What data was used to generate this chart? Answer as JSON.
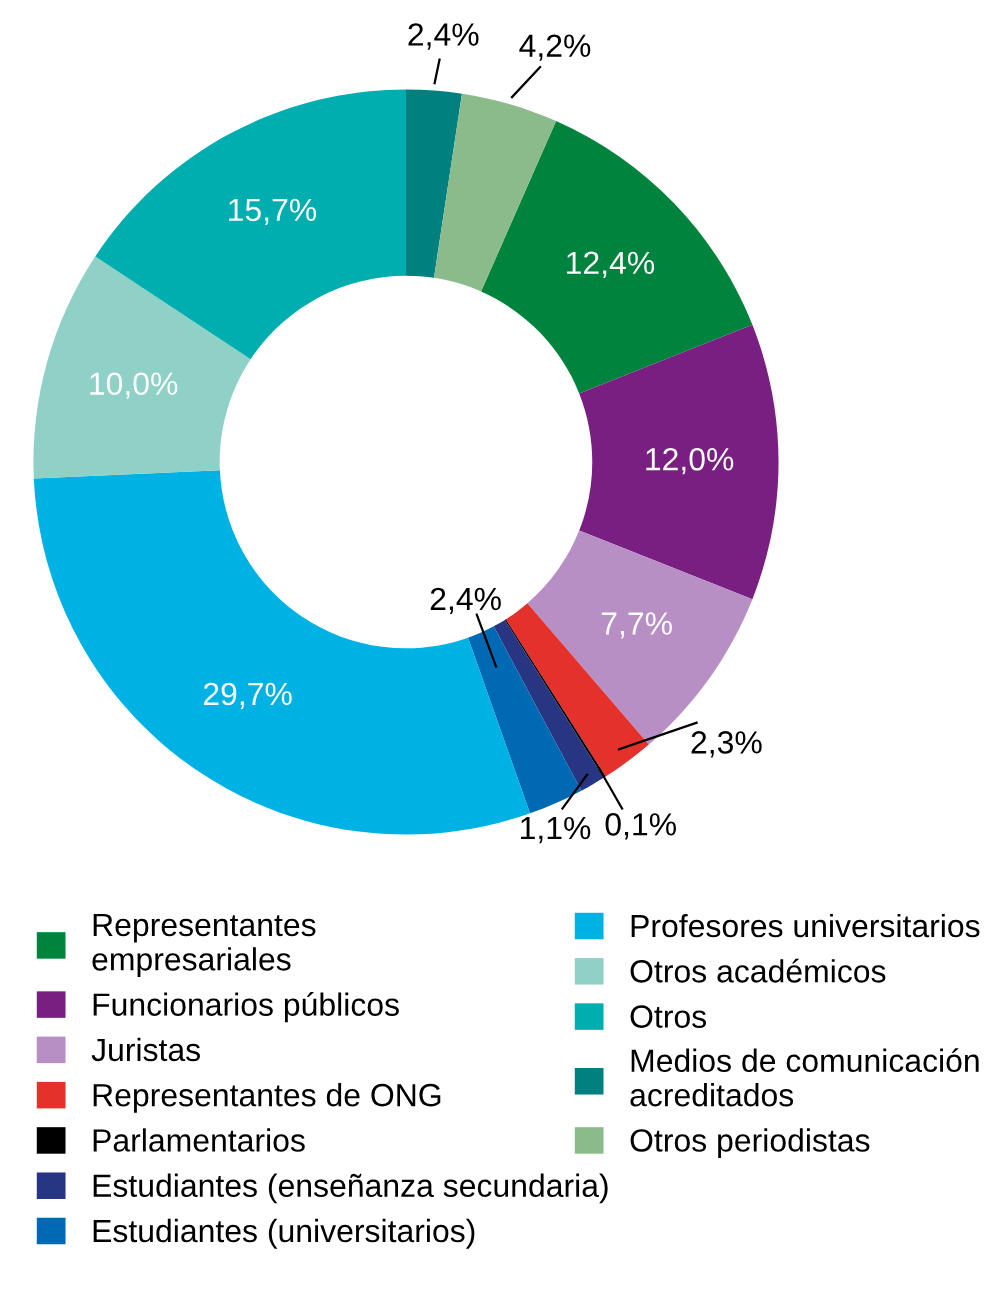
{
  "chart_data": {
    "type": "donut",
    "categories": [
      "Representantes\nempresariales",
      "Funcionarios públicos",
      "Juristas",
      "Representantes de ONG",
      "Parlamentarios",
      "Estudiantes (enseñanza secundaria)",
      "Estudiantes (universitarios)",
      "Profesores universitarios",
      "Otros académicos",
      "Otros",
      "Medios de comunicación\nacreditados",
      "Otros periodistas"
    ],
    "values": [
      12.4,
      12.0,
      7.7,
      2.3,
      0.1,
      1.1,
      2.4,
      29.7,
      10.0,
      15.7,
      2.4,
      4.2
    ],
    "value_labels": [
      "12,4%",
      "12,0%",
      "7,7%",
      "2,3%",
      "0,1%",
      "1,1%",
      "2,4%",
      "29,7%",
      "10,0%",
      "15,7%",
      "2,4%",
      "4,2%"
    ],
    "colors": [
      "#00843d",
      "#7a1f82",
      "#b78fc4",
      "#e4312b",
      "#000000",
      "#283583",
      "#0069b4",
      "#00b2e3",
      "#8fd0c7",
      "#00aeb0",
      "#00807f",
      "#8bbb8a"
    ],
    "legend": "bottom"
  }
}
